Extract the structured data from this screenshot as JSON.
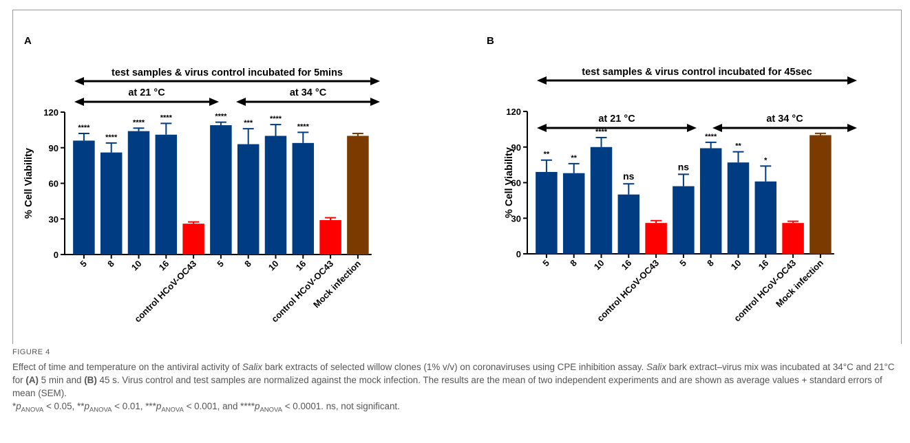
{
  "figure": {
    "label": "FIGURE 4",
    "caption": {
      "pre1": "Effect of time and temperature on the antiviral activity of ",
      "italic1": "Salix",
      "mid1": " bark extracts of selected willow clones (1% v/v) on coronaviruses using CPE inhibition assay. ",
      "italic2": "Salix",
      "mid2": " bark extract–virus mix was incubated at 34°C and 21°C for ",
      "panelA": "(A)",
      "mid3": " 5 min and ",
      "panelB": "(B)",
      "mid4": " 45 s. Virus control and test samples are normalized against the mock infection. The results are the mean of two independent experiments and are shown as average values + standard errors of mean (SEM). ",
      "s1": "*",
      "p": "p",
      "sub": "ANOVA",
      "t1": " < 0.05, ",
      "s2": "**",
      "t2": " < 0.01, ",
      "s3": "***",
      "t3": " < 0.001, and ",
      "s4": "****",
      "t4": " < 0.0001. ns, not significant."
    }
  },
  "colors": {
    "blue": "#003c82",
    "red": "#ff0000",
    "brown": "#7b3a00",
    "axis": "#000000"
  },
  "chart_data": [
    {
      "type": "bar",
      "panel": "A",
      "ylabel": "% Cell Viability",
      "ylim": [
        0,
        120
      ],
      "yticks": [
        0,
        30,
        60,
        90,
        120
      ],
      "categories": [
        "5",
        "8",
        "10",
        "16",
        "control HCoV-OC43",
        "5",
        "8",
        "10",
        "16",
        "control HCoV-OC43",
        "Mock infection"
      ],
      "values": [
        96,
        86,
        104,
        101,
        26,
        109,
        93,
        100,
        94,
        29,
        100
      ],
      "errors": [
        6,
        8,
        2.5,
        9.5,
        1.5,
        2.5,
        13,
        9.5,
        9,
        2,
        2
      ],
      "significance": [
        "****",
        "****",
        "****",
        "****",
        "",
        "****",
        "***",
        "****",
        "****",
        "",
        ""
      ],
      "bar_colors": [
        "blue",
        "blue",
        "blue",
        "blue",
        "red",
        "blue",
        "blue",
        "blue",
        "blue",
        "red",
        "brown"
      ],
      "annotations": {
        "top": "test samples & virus control incubated for 5mins",
        "left": "at 21 °C",
        "right": "at 34 °C"
      }
    },
    {
      "type": "bar",
      "panel": "B",
      "ylabel": "% Cell Viability",
      "ylim": [
        0,
        120
      ],
      "yticks": [
        0,
        30,
        60,
        90,
        120
      ],
      "categories": [
        "5",
        "8",
        "10",
        "16",
        "control HCoV-OC43",
        "5",
        "8",
        "10",
        "16",
        "control HCoV-OC43",
        "Mock infection"
      ],
      "values": [
        69,
        68,
        90,
        50,
        26,
        57,
        89,
        77,
        61,
        26,
        100
      ],
      "errors": [
        10,
        8,
        8,
        9,
        2,
        10,
        5,
        9,
        13,
        1.5,
        1.5
      ],
      "significance": [
        "**",
        "**",
        "****",
        "ns",
        "",
        "ns",
        "****",
        "**",
        "*",
        "",
        ""
      ],
      "bar_colors": [
        "blue",
        "blue",
        "blue",
        "blue",
        "red",
        "blue",
        "blue",
        "blue",
        "blue",
        "red",
        "brown"
      ],
      "annotations": {
        "top": "test samples & virus control incubated for 45sec",
        "left": "at 21 °C",
        "right": "at 34 °C"
      }
    }
  ]
}
